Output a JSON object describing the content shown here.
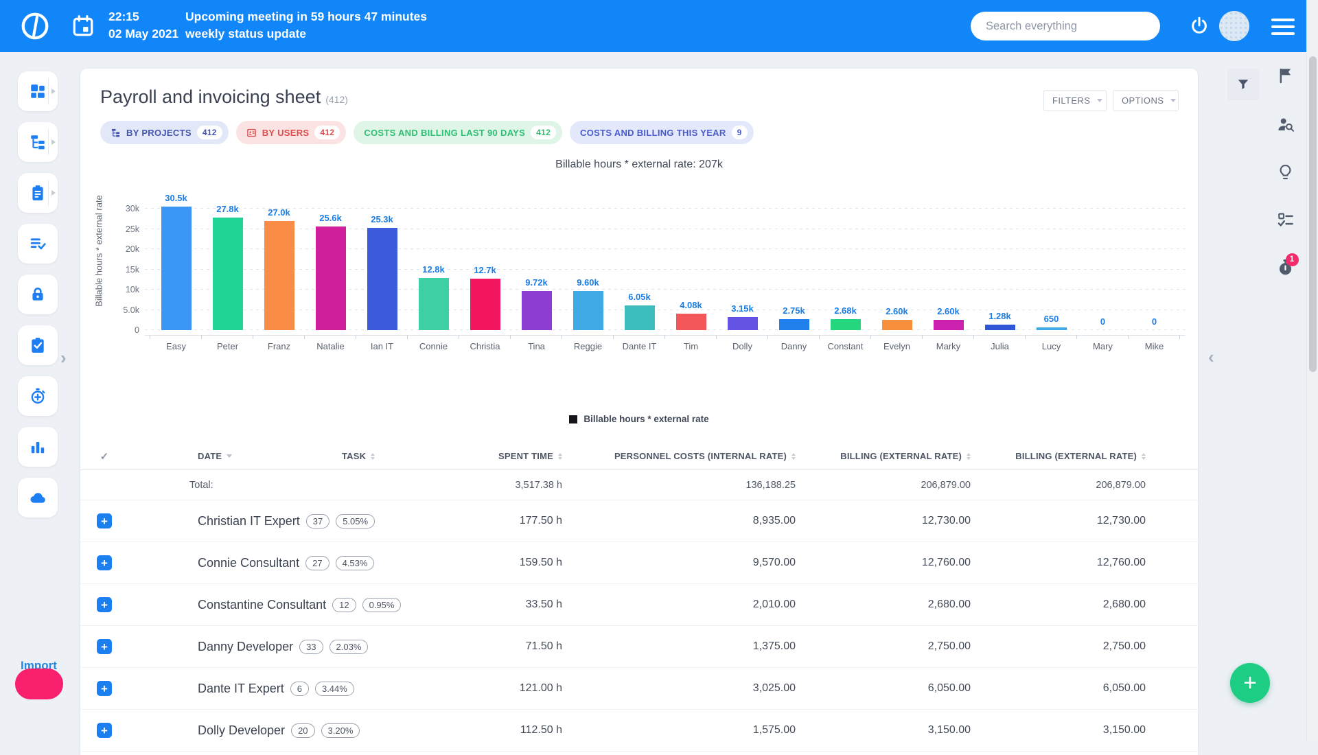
{
  "topbar": {
    "time": "22:15",
    "meeting_text": "Upcoming meeting in 59 hours 47 minutes",
    "date": "02 May 2021",
    "status_text": "weekly status update",
    "search_placeholder": "Search everything"
  },
  "page": {
    "title": "Payroll and invoicing sheet",
    "count": "(412)"
  },
  "toolbar": {
    "filters_label": "FILTERS",
    "options_label": "OPTIONS"
  },
  "tabs": [
    {
      "label": "BY PROJECTS",
      "count": "412",
      "icon": "tree-icon",
      "bg": "#e3e8f8",
      "fg": "#4354ae"
    },
    {
      "label": "BY USERS",
      "count": "412",
      "icon": "user-card-icon",
      "bg": "#fbe3e3",
      "fg": "#e04b4b"
    },
    {
      "label": "COSTS AND BILLING LAST 90 DAYS",
      "count": "412",
      "icon": "",
      "bg": "#def5e7",
      "fg": "#2fbf72"
    },
    {
      "label": "COSTS AND BILLING THIS YEAR",
      "count": "9",
      "icon": "",
      "bg": "#e3e8fa",
      "fg": "#4a5bd0"
    }
  ],
  "chart_data": {
    "type": "bar",
    "title": "Billable hours * external rate: 207k",
    "xlabel": "",
    "ylabel": "Billable hours * external rate",
    "categories": [
      "Easy",
      "Peter",
      "Franz",
      "Natalie",
      "Ian IT",
      "Connie",
      "Christia",
      "Tina",
      "Reggie",
      "Dante IT",
      "Tim",
      "Dolly",
      "Danny",
      "Constant",
      "Evelyn",
      "Marky",
      "Julia",
      "Lucy",
      "Mary",
      "Mike"
    ],
    "values": [
      30500,
      27800,
      27000,
      25600,
      25300,
      12800,
      12700,
      9720,
      9600,
      6050,
      4080,
      3150,
      2750,
      2680,
      2600,
      2600,
      1280,
      650,
      0,
      0
    ],
    "value_labels": [
      "30.5k",
      "27.8k",
      "27.0k",
      "25.6k",
      "25.3k",
      "12.8k",
      "12.7k",
      "9.72k",
      "9.60k",
      "6.05k",
      "4.08k",
      "3.15k",
      "2.75k",
      "2.68k",
      "2.60k",
      "2.60k",
      "1.28k",
      "650",
      "0",
      "0"
    ],
    "bar_colors": [
      "#3b96f5",
      "#1fd494",
      "#f98c47",
      "#cf1f9a",
      "#3c5bdc",
      "#3ed0a4",
      "#f2175f",
      "#8c3ed2",
      "#3fa9e5",
      "#3dbdbe",
      "#f4565a",
      "#6553e3",
      "#2180ec",
      "#25d67e",
      "#f78f3c",
      "#cb21ae",
      "#3056d8",
      "#3fa9e5",
      "#3b96f5",
      "#3b96f5"
    ],
    "yticks": [
      {
        "v": 0,
        "label": "0"
      },
      {
        "v": 5000,
        "label": "5.0k"
      },
      {
        "v": 10000,
        "label": "10k"
      },
      {
        "v": 15000,
        "label": "15k"
      },
      {
        "v": 20000,
        "label": "20k"
      },
      {
        "v": 25000,
        "label": "25k"
      },
      {
        "v": 30000,
        "label": "30k"
      }
    ],
    "ylim": [
      0,
      33000
    ],
    "grid": "horizontal-dashed",
    "legend": {
      "position": "bottom",
      "label": "Billable hours * external rate",
      "marker_color": "#14161b"
    },
    "value_label_color": "#1b7de4"
  },
  "table": {
    "check_glyph": "✓",
    "headers": [
      {
        "label": "DATE",
        "sort": "down"
      },
      {
        "label": "TASK",
        "sort": "both"
      },
      {
        "label": "SPENT TIME",
        "sort": "both"
      },
      {
        "label": "PERSONNEL COSTS (INTERNAL RATE)",
        "sort": "both"
      },
      {
        "label": "BILLING (EXTERNAL RATE)",
        "sort": "both"
      },
      {
        "label": "BILLING (EXTERNAL RATE)",
        "sort": "both"
      }
    ],
    "total_label": "Total:",
    "total": {
      "spent_time": "3,517.38 h",
      "personnel_costs": "136,188.25",
      "billing_1": "206,879.00",
      "billing_2": "206,879.00"
    },
    "rows": [
      {
        "name": "Christian IT Expert",
        "count": "37",
        "percent": "5.05%",
        "spent_time": "177.50 h",
        "personnel_costs": "8,935.00",
        "billing_1": "12,730.00",
        "billing_2": "12,730.00"
      },
      {
        "name": "Connie Consultant",
        "count": "27",
        "percent": "4.53%",
        "spent_time": "159.50 h",
        "personnel_costs": "9,570.00",
        "billing_1": "12,760.00",
        "billing_2": "12,760.00"
      },
      {
        "name": "Constantine Consultant",
        "count": "12",
        "percent": "0.95%",
        "spent_time": "33.50 h",
        "personnel_costs": "2,010.00",
        "billing_1": "2,680.00",
        "billing_2": "2,680.00"
      },
      {
        "name": "Danny Developer",
        "count": "33",
        "percent": "2.03%",
        "spent_time": "71.50 h",
        "personnel_costs": "1,375.00",
        "billing_1": "2,750.00",
        "billing_2": "2,750.00"
      },
      {
        "name": "Dante IT Expert",
        "count": "6",
        "percent": "3.44%",
        "spent_time": "121.00 h",
        "personnel_costs": "3,025.00",
        "billing_1": "6,050.00",
        "billing_2": "6,050.00"
      },
      {
        "name": "Dolly Developer",
        "count": "20",
        "percent": "3.20%",
        "spent_time": "112.50 h",
        "personnel_costs": "1,575.00",
        "billing_1": "3,150.00",
        "billing_2": "3,150.00"
      }
    ]
  },
  "left_rail": {
    "items": [
      {
        "icon": "dashboard-icon",
        "expandable": true
      },
      {
        "icon": "tree-icon",
        "expandable": true
      },
      {
        "icon": "clipboard-icon",
        "expandable": true
      },
      {
        "icon": "list-check-icon",
        "expandable": false
      },
      {
        "icon": "lock-icon",
        "expandable": false
      },
      {
        "icon": "clipboard-check-icon",
        "expandable": false
      },
      {
        "icon": "timer-add-icon",
        "expandable": false
      },
      {
        "icon": "bar-chart-icon",
        "expandable": false
      },
      {
        "icon": "cloud-icon",
        "expandable": false
      }
    ]
  },
  "right_rail": {
    "items": [
      {
        "icon": "flag-icon",
        "badge": ""
      },
      {
        "icon": "user-search-icon",
        "badge": ""
      },
      {
        "icon": "lightbulb-icon",
        "badge": ""
      },
      {
        "icon": "checklist-icon",
        "badge": ""
      },
      {
        "icon": "stopwatch-icon",
        "badge": "1"
      }
    ],
    "badge_color": "#f42a6b"
  },
  "fab": {
    "label": "+",
    "color": "#1ecd84"
  },
  "import": {
    "label": "Import",
    "beacon_color": "#f9206e"
  },
  "colors": {
    "topbar": "#1086f9",
    "page_bg": "#edf0f5",
    "accent": "#1b7ff0"
  }
}
